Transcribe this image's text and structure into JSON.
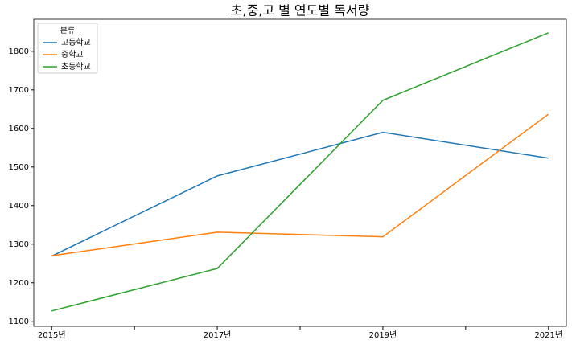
{
  "chart_data": {
    "type": "line",
    "title": "초,중,고 별 연도별 독서량",
    "categories": [
      "2015년",
      "2017년",
      "2019년",
      "2021년"
    ],
    "series": [
      {
        "name": "고등학교",
        "color": "#1f77b4",
        "values": [
          1269,
          1477,
          1590,
          1523
        ]
      },
      {
        "name": "중학교",
        "color": "#ff7f0e",
        "values": [
          1270,
          1331,
          1319,
          1637
        ]
      },
      {
        "name": "초등학교",
        "color": "#2ca02c",
        "values": [
          1127,
          1237,
          1673,
          1848
        ]
      }
    ],
    "legend_title": "분류",
    "legend": "upper left",
    "ylim": [
      1087,
      1883
    ],
    "yticks": [
      1100,
      1200,
      1300,
      1400,
      1500,
      1600,
      1700,
      1800
    ]
  }
}
